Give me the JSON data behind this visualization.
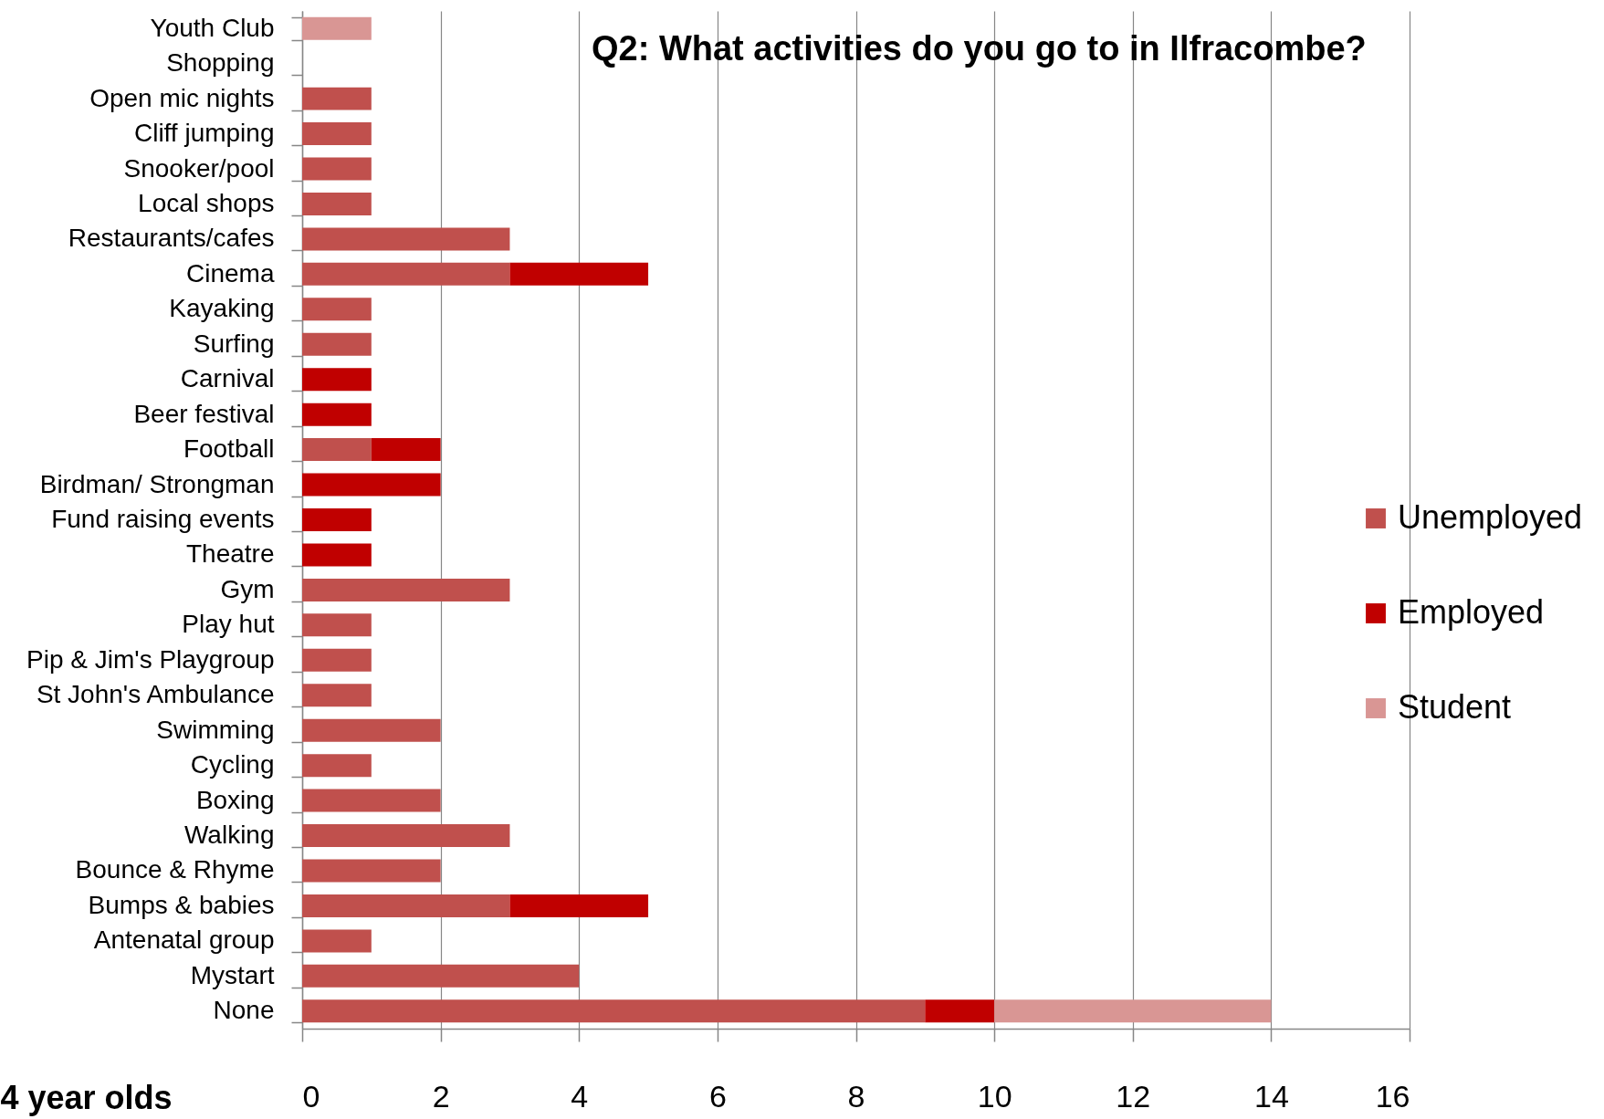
{
  "chart_data": {
    "type": "bar",
    "title": "Q2: What activities do you go to in Ilfracombe?",
    "xlabel": "4 year olds",
    "orientation": "horizontal",
    "stacked": true,
    "categories": [
      "Youth Club",
      "Shopping",
      "Open mic nights",
      "Cliff jumping",
      "Snooker/pool",
      "Local shops",
      "Restaurants/cafes",
      "Cinema",
      "Kayaking",
      "Surfing",
      "Carnival",
      "Beer festival",
      "Football",
      "Birdman/ Strongman",
      "Fund raising events",
      "Theatre",
      "Gym",
      "Play hut",
      "Pip & Jim's Playgroup",
      "St John's Ambulance",
      "Swimming",
      "Cycling",
      "Boxing",
      "Walking",
      "Bounce & Rhyme",
      "Bumps & babies",
      "Antenatal group",
      "Mystart",
      "None"
    ],
    "series": [
      {
        "name": "Unemployed",
        "color": "#c0504d",
        "values": [
          null,
          null,
          1,
          1,
          1,
          1,
          3,
          3,
          1,
          1,
          null,
          null,
          1,
          null,
          null,
          null,
          3,
          1,
          1,
          1,
          2,
          1,
          2,
          3,
          2,
          3,
          1,
          4,
          9
        ]
      },
      {
        "name": "Employed",
        "color": "#c00000",
        "values": [
          null,
          null,
          null,
          null,
          null,
          null,
          null,
          2,
          null,
          null,
          1,
          1,
          1,
          2,
          1,
          1,
          null,
          null,
          null,
          null,
          null,
          null,
          null,
          null,
          null,
          2,
          null,
          null,
          1
        ]
      },
      {
        "name": "Student",
        "color": "#d99694",
        "values": [
          1,
          null,
          null,
          null,
          null,
          null,
          null,
          null,
          null,
          null,
          null,
          null,
          null,
          null,
          null,
          null,
          null,
          null,
          null,
          null,
          null,
          null,
          null,
          null,
          null,
          null,
          null,
          null,
          4
        ]
      }
    ],
    "xlim": [
      0,
      16
    ],
    "xticks": [
      0,
      2,
      4,
      6,
      8,
      10,
      12,
      14,
      16
    ],
    "grid": "x",
    "legend": "right"
  }
}
